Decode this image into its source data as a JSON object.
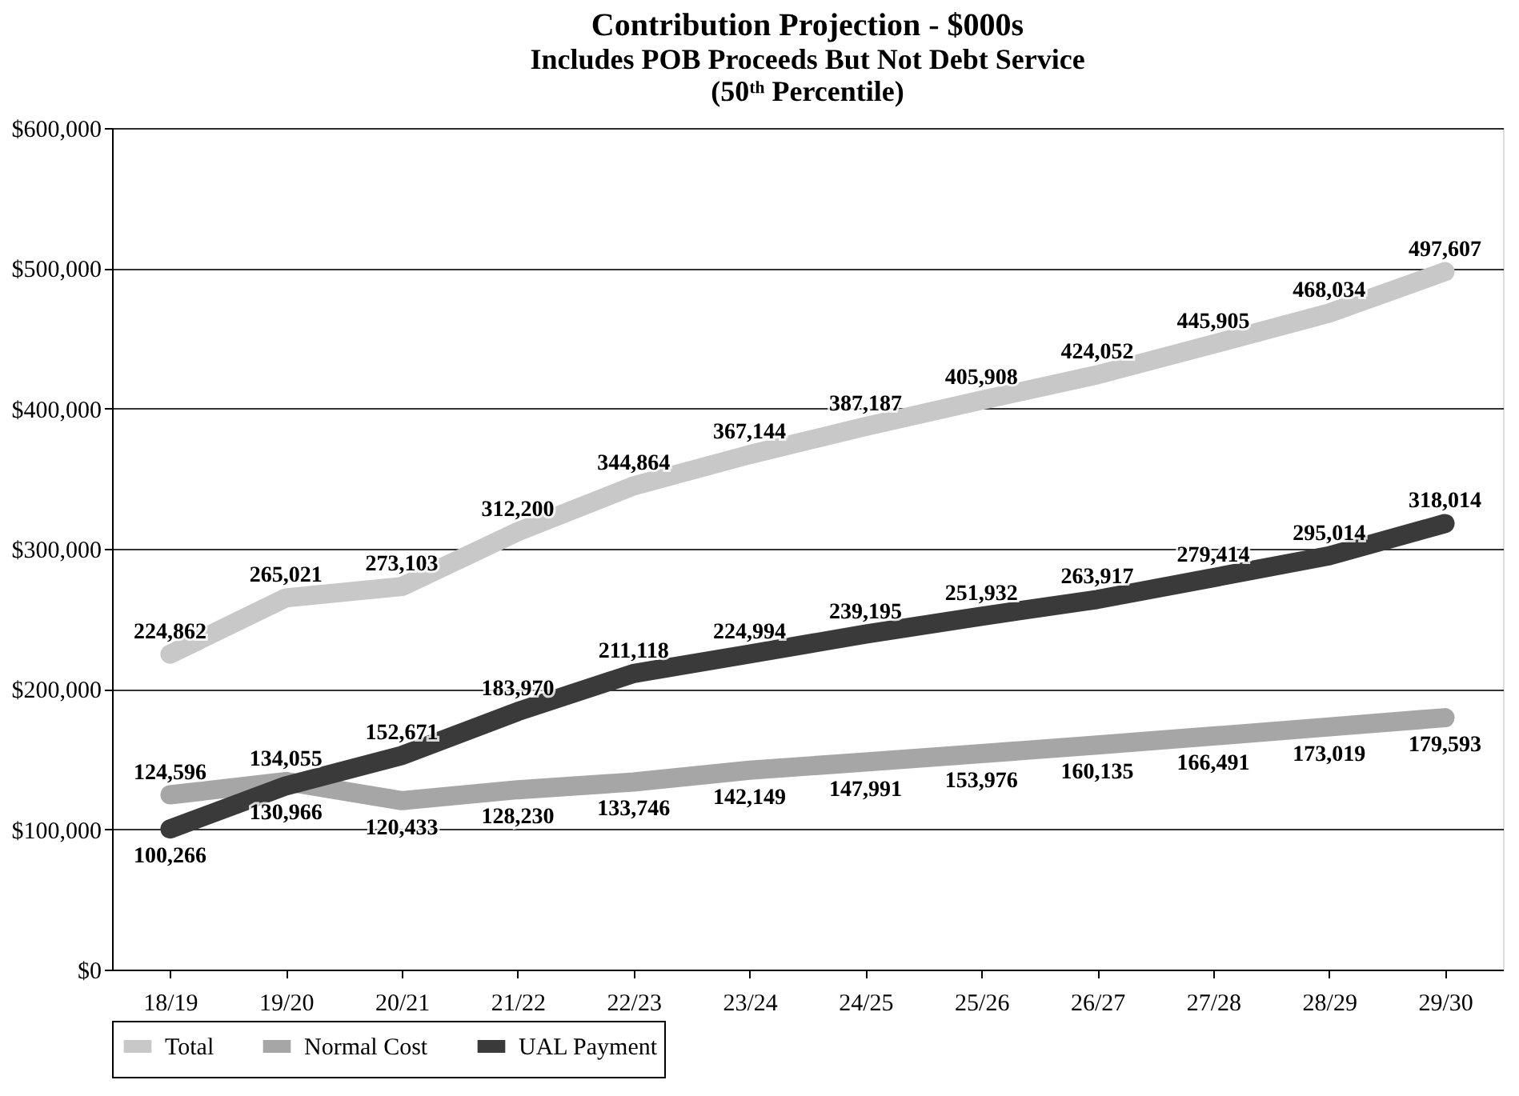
{
  "chart_data": {
    "type": "line",
    "title": "Contribution Projection - $000s",
    "subtitle": [
      "Includes POB Proceeds But Not Debt Service",
      "(50ᵗʰ Percentile)"
    ],
    "categories": [
      "18/19",
      "19/20",
      "20/21",
      "21/22",
      "22/23",
      "23/24",
      "24/25",
      "25/26",
      "26/27",
      "27/28",
      "28/29",
      "29/30"
    ],
    "series": [
      {
        "name": "Total",
        "color": "#c8c8c8",
        "values": [
          224862,
          265021,
          273103,
          312200,
          344864,
          367144,
          387187,
          405908,
          424052,
          445905,
          468034,
          497607
        ],
        "value_labels": [
          "224,862",
          "265,021",
          "273,103",
          "312,200",
          "344,864",
          "367,144",
          "387,187",
          "405,908",
          "424,052",
          "445,905",
          "468,034",
          "497,607"
        ]
      },
      {
        "name": "Normal Cost",
        "color": "#a6a6a6",
        "values": [
          124596,
          134055,
          120433,
          128230,
          133746,
          142149,
          147991,
          153976,
          160135,
          166491,
          173019,
          179593
        ],
        "value_labels": [
          "124,596",
          "134,055",
          "120,433",
          "128,230",
          "133,746",
          "142,149",
          "147,991",
          "153,976",
          "160,135",
          "166,491",
          "173,019",
          "179,593"
        ]
      },
      {
        "name": "UAL Payment",
        "color": "#3a3a3a",
        "values": [
          100266,
          130966,
          152671,
          183970,
          211118,
          224994,
          239195,
          251932,
          263917,
          279414,
          295014,
          318014
        ],
        "value_labels": [
          "100,266",
          "130,966",
          "152,671",
          "183,970",
          "211,118",
          "224,994",
          "239,195",
          "251,932",
          "263,917",
          "279,414",
          "295,014",
          "318,014"
        ]
      }
    ],
    "ylim": [
      0,
      600000
    ],
    "yticks": [
      {
        "value": 0,
        "label": "$0"
      },
      {
        "value": 100000,
        "label": "$100,000"
      },
      {
        "value": 200000,
        "label": "$200,000"
      },
      {
        "value": 300000,
        "label": "$300,000"
      },
      {
        "value": 400000,
        "label": "$400,000"
      },
      {
        "value": 500000,
        "label": "$500,000"
      },
      {
        "value": 600000,
        "label": "$600,000"
      }
    ],
    "grid": "y",
    "legend": "bottom",
    "line_style": "solid",
    "marker": "none"
  }
}
